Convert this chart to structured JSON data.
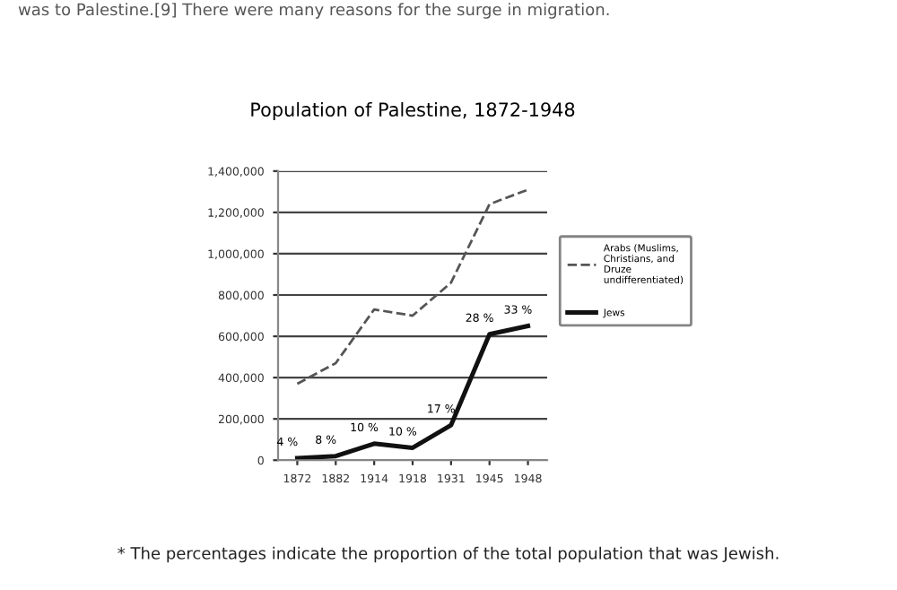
{
  "chart_data": {
    "type": "line",
    "title": "Population of Palestine, 1872-1948",
    "categories": [
      "1872",
      "1882",
      "1914",
      "1918",
      "1931",
      "1945",
      "1948"
    ],
    "series": [
      {
        "name": "Arabs (Muslims, Christians, and Druze undifferentiated)",
        "color": "#555555",
        "line_style": "dashed",
        "values": [
          370000,
          470000,
          730000,
          700000,
          860000,
          1240000,
          1310000
        ]
      },
      {
        "name": "Jews",
        "color": "#111111",
        "line_style": "solid",
        "values": [
          10000,
          20000,
          80000,
          60000,
          170000,
          610000,
          650000
        ]
      }
    ],
    "ylim": [
      0,
      1400000
    ],
    "yticks": [
      {
        "value": 0,
        "label": "0"
      },
      {
        "value": 200000,
        "label": "200,000"
      },
      {
        "value": 400000,
        "label": "400,000"
      },
      {
        "value": 600000,
        "label": "600,000"
      },
      {
        "value": 800000,
        "label": "800,000"
      },
      {
        "value": 1000000,
        "label": "1,000,000"
      },
      {
        "value": 1200000,
        "label": "1,200,000"
      },
      {
        "value": 1400000,
        "label": "1,400,000"
      }
    ],
    "grid": "y",
    "legend": "right",
    "marker": "none",
    "annotations": [
      "was to Palestine.[9] There were many reasons for the surge in migration.",
      "* The percentages indicate the proportion of the total population that was Jewish.",
      {
        "text": "4 %",
        "x": "1872",
        "y": 10000
      },
      {
        "text": "8 %",
        "x": "1882",
        "y": 20000
      },
      {
        "text": "10 %",
        "x": "1914",
        "y": 80000
      },
      {
        "text": "10 %",
        "x": "1918",
        "y": 60000
      },
      {
        "text": "17 %",
        "x": "1931",
        "y": 170000
      },
      {
        "text": "28 %",
        "x": "1945",
        "y": 610000
      },
      {
        "text": "33 %",
        "x": "1948",
        "y": 650000
      }
    ]
  }
}
